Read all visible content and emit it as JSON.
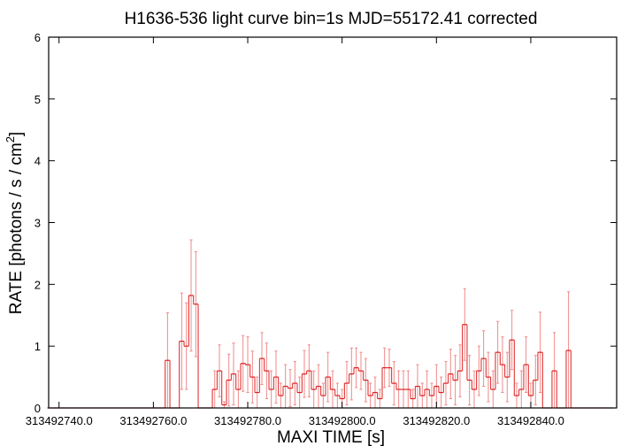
{
  "chart_data": {
    "type": "line",
    "title": "H1636-536 light curve bin=1s MJD=55172.41 corrected",
    "xlabel": "MAXI TIME [s]",
    "ylabel_main": "RATE [photons / s / cm",
    "ylabel_sup": "2",
    "ylabel_close": "]",
    "xlim": [
      313492737.8,
      313492858.2
    ],
    "ylim": [
      0,
      6
    ],
    "x_ticks": [
      313492740.0,
      313492760.0,
      313492780.0,
      313492800.0,
      313492820.0,
      313492840.0
    ],
    "x_tick_labels": [
      "313492740.0",
      "313492760.0",
      "313492780.0",
      "313492800.0",
      "313492820.0",
      "313492840.0"
    ],
    "y_ticks": [
      0,
      1,
      2,
      3,
      4,
      5,
      6
    ],
    "y_tick_labels": [
      "0",
      "1",
      "2",
      "3",
      "4",
      "5",
      "6"
    ],
    "color": "#dd2020",
    "error_color": "#f08a8a",
    "series": [
      {
        "x": [
          313492738,
          313492739,
          313492740,
          313492741,
          313492742,
          313492743,
          313492744,
          313492745,
          313492746,
          313492747,
          313492748,
          313492749,
          313492750,
          313492751,
          313492752,
          313492753,
          313492754,
          313492755,
          313492756,
          313492757,
          313492758,
          313492759,
          313492760,
          313492761,
          313492762,
          313492763,
          313492764,
          313492765,
          313492766,
          313492767,
          313492768,
          313492769,
          313492770,
          313492771,
          313492772,
          313492773,
          313492774,
          313492775,
          313492776,
          313492777,
          313492778,
          313492779,
          313492780,
          313492781,
          313492782,
          313492783,
          313492784,
          313492785,
          313492786,
          313492787,
          313492788,
          313492789,
          313492790,
          313492791,
          313492792,
          313492793,
          313492794,
          313492795,
          313492796,
          313492797,
          313492798,
          313492799,
          313492800,
          313492801,
          313492802,
          313492803,
          313492804,
          313492805,
          313492806,
          313492807,
          313492808,
          313492809,
          313492810,
          313492811,
          313492812,
          313492813,
          313492814,
          313492815,
          313492816,
          313492817,
          313492818,
          313492819,
          313492820,
          313492821,
          313492822,
          313492823,
          313492824,
          313492825,
          313492826,
          313492827,
          313492828,
          313492829,
          313492830,
          313492831,
          313492832,
          313492833,
          313492834,
          313492835,
          313492836,
          313492837,
          313492838,
          313492839,
          313492840,
          313492841,
          313492842,
          313492843,
          313492844,
          313492845,
          313492846,
          313492847,
          313492848,
          313492849,
          313492850,
          313492851,
          313492852,
          313492853,
          313492854,
          313492855,
          313492856,
          313492857
        ],
        "y": [
          0,
          0,
          0,
          0,
          0,
          0,
          0,
          0,
          0,
          0,
          0,
          0,
          0,
          0,
          0,
          0,
          0,
          0,
          0,
          0,
          0,
          0,
          0,
          0,
          0,
          0.77,
          0,
          0,
          1.08,
          1.0,
          1.82,
          1.68,
          0,
          0,
          0,
          0.3,
          0.6,
          0.05,
          0.45,
          0.55,
          0.3,
          0.72,
          0.7,
          0.5,
          0.25,
          0.8,
          0.6,
          0.3,
          0.5,
          0.2,
          0.35,
          0.32,
          0.4,
          0.25,
          0.55,
          0.6,
          0.3,
          0.35,
          0.2,
          0.5,
          0.3,
          0.2,
          0.15,
          0.4,
          0.55,
          0.65,
          0.6,
          0.45,
          0.2,
          0.25,
          0.15,
          0.65,
          0.65,
          0.4,
          0.3,
          0.3,
          0.3,
          0.15,
          0.35,
          0.2,
          0.3,
          0.2,
          0.35,
          0.25,
          0.4,
          0.55,
          0.45,
          0.6,
          1.35,
          0.45,
          0.3,
          0.6,
          0.8,
          0.5,
          0.3,
          0.9,
          0.7,
          0.5,
          1.1,
          0.2,
          0.3,
          0.7,
          0.2,
          0.45,
          0.9,
          0.0,
          0.0,
          0.6,
          0.0,
          0.0,
          0.93,
          0,
          0,
          0,
          0,
          0,
          0,
          0,
          0,
          0
        ],
        "err": [
          0,
          0,
          0,
          0,
          0,
          0,
          0,
          0,
          0,
          0,
          0,
          0,
          0,
          0,
          0,
          0,
          0,
          0,
          0,
          0,
          0,
          0,
          0,
          0,
          0,
          0.77,
          0,
          0,
          0.78,
          0.7,
          0.9,
          0.85,
          0,
          0,
          0,
          0.3,
          0.42,
          0.05,
          0.42,
          0.5,
          0.3,
          0.45,
          0.45,
          0.42,
          0.25,
          0.42,
          0.45,
          0.3,
          0.42,
          0.2,
          0.35,
          0.3,
          0.35,
          0.25,
          0.38,
          0.42,
          0.3,
          0.35,
          0.2,
          0.4,
          0.3,
          0.2,
          0.15,
          0.35,
          0.42,
          0.32,
          0.3,
          0.35,
          0.2,
          0.25,
          0.15,
          0.32,
          0.3,
          0.35,
          0.3,
          0.3,
          0.3,
          0.15,
          0.35,
          0.2,
          0.3,
          0.2,
          0.35,
          0.25,
          0.35,
          0.4,
          0.4,
          0.42,
          0.58,
          0.4,
          0.3,
          0.4,
          0.45,
          0.4,
          0.3,
          0.5,
          0.45,
          0.4,
          0.48,
          0.2,
          0.3,
          0.45,
          0.2,
          0.4,
          0.65,
          0.0,
          0.0,
          0.62,
          0.0,
          0.0,
          0.95,
          0,
          0,
          0,
          0,
          0,
          0,
          0,
          0,
          0
        ]
      }
    ]
  }
}
